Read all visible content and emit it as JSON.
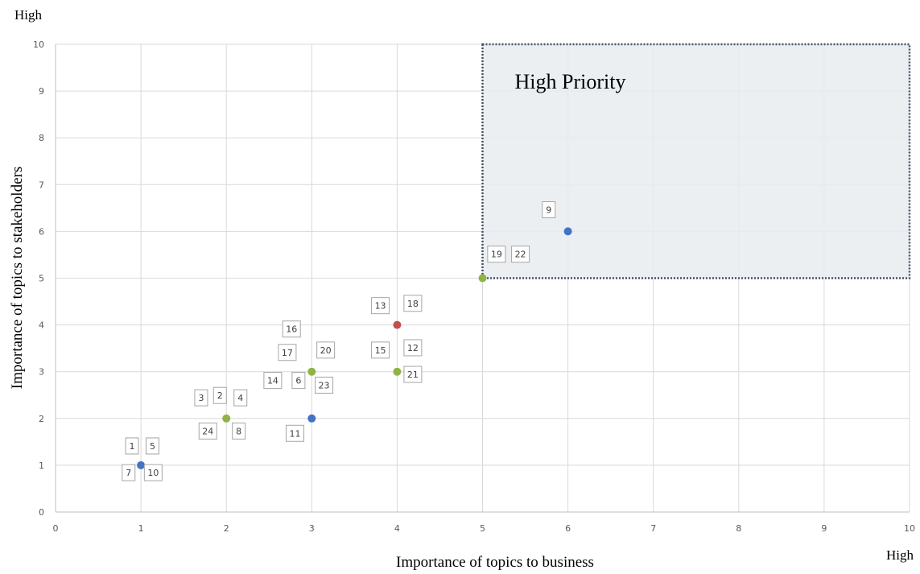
{
  "chart_data": {
    "type": "scatter",
    "xlabel": "Importance  of topics to business",
    "ylabel": "Importance  of topics to stakeholders",
    "x_high_label": "High",
    "y_high_label": "High",
    "xlim": [
      0,
      10
    ],
    "ylim": [
      0,
      10
    ],
    "ticks": [
      0,
      1,
      2,
      3,
      4,
      5,
      6,
      7,
      8,
      9,
      10
    ],
    "grid": true,
    "region": {
      "label": "High Priority",
      "x": [
        5,
        10
      ],
      "y": [
        5,
        10
      ],
      "fill": "#e8ecf0",
      "border": "#44546a"
    },
    "points": [
      {
        "x": 1,
        "y": 1,
        "color": "#4472c4"
      },
      {
        "x": 2,
        "y": 2,
        "color": "#8fb446"
      },
      {
        "x": 3,
        "y": 2,
        "color": "#4472c4"
      },
      {
        "x": 3,
        "y": 3,
        "color": "#8fb446"
      },
      {
        "x": 4,
        "y": 3,
        "color": "#8fb446"
      },
      {
        "x": 4,
        "y": 4,
        "color": "#c0504d"
      },
      {
        "x": 5,
        "y": 5,
        "color": "#8fb446"
      },
      {
        "x": 6,
        "y": 6,
        "color": "#4472c4"
      }
    ],
    "labels": [
      {
        "text": "1",
        "x": 0.82,
        "y": 1.24
      },
      {
        "text": "5",
        "x": 1.06,
        "y": 1.24
      },
      {
        "text": "7",
        "x": 0.78,
        "y": 0.67
      },
      {
        "text": "10",
        "x": 1.04,
        "y": 0.67
      },
      {
        "text": "3",
        "x": 1.63,
        "y": 2.27
      },
      {
        "text": "2",
        "x": 1.85,
        "y": 2.32
      },
      {
        "text": "4",
        "x": 2.09,
        "y": 2.27
      },
      {
        "text": "24",
        "x": 1.68,
        "y": 1.56
      },
      {
        "text": "8",
        "x": 2.07,
        "y": 1.56
      },
      {
        "text": "16",
        "x": 2.66,
        "y": 3.74
      },
      {
        "text": "17",
        "x": 2.61,
        "y": 3.24
      },
      {
        "text": "20",
        "x": 3.06,
        "y": 3.29
      },
      {
        "text": "14",
        "x": 2.44,
        "y": 2.64
      },
      {
        "text": "6",
        "x": 2.77,
        "y": 2.64
      },
      {
        "text": "23",
        "x": 3.04,
        "y": 2.54
      },
      {
        "text": "11",
        "x": 2.7,
        "y": 1.51
      },
      {
        "text": "13",
        "x": 3.7,
        "y": 4.24
      },
      {
        "text": "18",
        "x": 4.08,
        "y": 4.29
      },
      {
        "text": "15",
        "x": 3.7,
        "y": 3.29
      },
      {
        "text": "12",
        "x": 4.08,
        "y": 3.34
      },
      {
        "text": "21",
        "x": 4.08,
        "y": 2.77
      },
      {
        "text": "19",
        "x": 5.06,
        "y": 5.34
      },
      {
        "text": "22",
        "x": 5.34,
        "y": 5.34
      },
      {
        "text": "9",
        "x": 5.7,
        "y": 6.29
      }
    ]
  }
}
